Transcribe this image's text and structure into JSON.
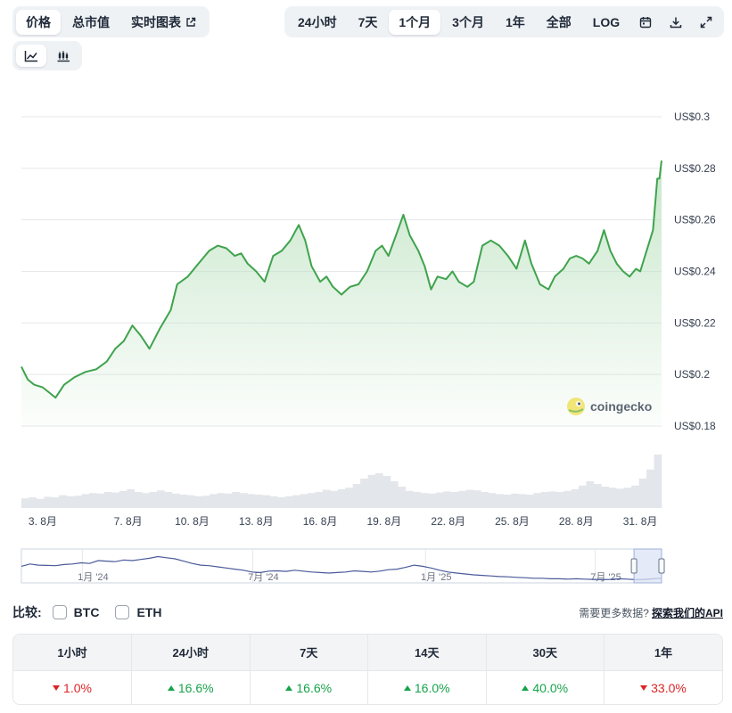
{
  "left_tabs": [
    {
      "label": "价格",
      "active": true
    },
    {
      "label": "总市值",
      "active": false
    },
    {
      "label": "实时图表",
      "active": false
    }
  ],
  "range_tabs": [
    {
      "label": "24小时",
      "active": false
    },
    {
      "label": "7天",
      "active": false
    },
    {
      "label": "1个月",
      "active": true
    },
    {
      "label": "3个月",
      "active": false
    },
    {
      "label": "1年",
      "active": false
    },
    {
      "label": "全部",
      "active": false
    },
    {
      "label": "LOG",
      "active": false
    }
  ],
  "toolbar_icons": [
    "calendar-icon",
    "download-icon",
    "fullscreen-icon"
  ],
  "view_toggle": [
    {
      "icon": "line-chart-icon",
      "active": true
    },
    {
      "icon": "candlestick-icon",
      "active": false
    }
  ],
  "watermark": "coingecko",
  "colors": {
    "line": "#3fa34d",
    "area": "#cfead1",
    "nav_line": "#4a5a9a",
    "nav_selection": "#dce3f6",
    "positive": "#16a34a",
    "negative": "#dc2626"
  },
  "chart_data": {
    "type": "line",
    "ylim": [
      0.18,
      0.3
    ],
    "ytick_values": [
      0.18,
      0.2,
      0.22,
      0.24,
      0.26,
      0.28,
      0.3
    ],
    "ytick_labels": [
      "US$0.18",
      "US$0.2",
      "US$0.22",
      "US$0.24",
      "US$0.26",
      "US$0.28",
      "US$0.3"
    ],
    "xlim": [
      2.0,
      32.0
    ],
    "xtick_values": [
      3,
      7,
      10,
      13,
      16,
      19,
      22,
      25,
      28,
      31
    ],
    "xtick_labels": [
      "3. 8月",
      "7. 8月",
      "10. 8月",
      "13. 8月",
      "16. 8月",
      "19. 8月",
      "22. 8月",
      "25. 8月",
      "28. 8月",
      "31. 8月"
    ],
    "points": [
      [
        2.0,
        0.203
      ],
      [
        2.3,
        0.198
      ],
      [
        2.6,
        0.196
      ],
      [
        3.0,
        0.195
      ],
      [
        3.3,
        0.193
      ],
      [
        3.6,
        0.191
      ],
      [
        4.0,
        0.196
      ],
      [
        4.5,
        0.199
      ],
      [
        5.0,
        0.201
      ],
      [
        5.5,
        0.202
      ],
      [
        6.0,
        0.205
      ],
      [
        6.4,
        0.21
      ],
      [
        6.8,
        0.213
      ],
      [
        7.2,
        0.219
      ],
      [
        7.6,
        0.215
      ],
      [
        8.0,
        0.21
      ],
      [
        8.5,
        0.218
      ],
      [
        9.0,
        0.225
      ],
      [
        9.3,
        0.235
      ],
      [
        9.8,
        0.238
      ],
      [
        10.3,
        0.243
      ],
      [
        10.8,
        0.248
      ],
      [
        11.2,
        0.25
      ],
      [
        11.6,
        0.249
      ],
      [
        12.0,
        0.246
      ],
      [
        12.3,
        0.247
      ],
      [
        12.6,
        0.243
      ],
      [
        13.0,
        0.24
      ],
      [
        13.4,
        0.236
      ],
      [
        13.8,
        0.246
      ],
      [
        14.2,
        0.248
      ],
      [
        14.6,
        0.252
      ],
      [
        15.0,
        0.258
      ],
      [
        15.3,
        0.252
      ],
      [
        15.6,
        0.242
      ],
      [
        16.0,
        0.236
      ],
      [
        16.3,
        0.238
      ],
      [
        16.6,
        0.234
      ],
      [
        17.0,
        0.231
      ],
      [
        17.4,
        0.234
      ],
      [
        17.8,
        0.235
      ],
      [
        18.2,
        0.24
      ],
      [
        18.6,
        0.248
      ],
      [
        18.9,
        0.25
      ],
      [
        19.2,
        0.246
      ],
      [
        19.6,
        0.255
      ],
      [
        19.9,
        0.262
      ],
      [
        20.2,
        0.254
      ],
      [
        20.6,
        0.248
      ],
      [
        20.9,
        0.242
      ],
      [
        21.2,
        0.233
      ],
      [
        21.5,
        0.238
      ],
      [
        21.9,
        0.237
      ],
      [
        22.2,
        0.24
      ],
      [
        22.5,
        0.236
      ],
      [
        22.9,
        0.234
      ],
      [
        23.2,
        0.236
      ],
      [
        23.6,
        0.25
      ],
      [
        24.0,
        0.252
      ],
      [
        24.4,
        0.25
      ],
      [
        24.8,
        0.246
      ],
      [
        25.2,
        0.241
      ],
      [
        25.6,
        0.252
      ],
      [
        25.9,
        0.243
      ],
      [
        26.3,
        0.235
      ],
      [
        26.7,
        0.233
      ],
      [
        27.0,
        0.238
      ],
      [
        27.4,
        0.241
      ],
      [
        27.7,
        0.245
      ],
      [
        28.0,
        0.246
      ],
      [
        28.3,
        0.245
      ],
      [
        28.6,
        0.243
      ],
      [
        29.0,
        0.248
      ],
      [
        29.3,
        0.256
      ],
      [
        29.6,
        0.248
      ],
      [
        29.9,
        0.243
      ],
      [
        30.2,
        0.24
      ],
      [
        30.5,
        0.238
      ],
      [
        30.8,
        0.241
      ],
      [
        31.0,
        0.24
      ],
      [
        31.3,
        0.248
      ],
      [
        31.6,
        0.256
      ],
      [
        31.8,
        0.276
      ],
      [
        31.9,
        0.276
      ],
      [
        32.0,
        0.283
      ]
    ],
    "volume": [
      0.18,
      0.2,
      0.17,
      0.21,
      0.2,
      0.24,
      0.22,
      0.23,
      0.26,
      0.28,
      0.27,
      0.3,
      0.29,
      0.32,
      0.35,
      0.3,
      0.28,
      0.3,
      0.33,
      0.3,
      0.27,
      0.25,
      0.24,
      0.22,
      0.23,
      0.26,
      0.28,
      0.27,
      0.3,
      0.28,
      0.26,
      0.25,
      0.24,
      0.22,
      0.2,
      0.22,
      0.24,
      0.26,
      0.28,
      0.3,
      0.34,
      0.32,
      0.35,
      0.38,
      0.45,
      0.55,
      0.62,
      0.65,
      0.6,
      0.5,
      0.4,
      0.32,
      0.3,
      0.28,
      0.27,
      0.29,
      0.31,
      0.3,
      0.32,
      0.34,
      0.33,
      0.3,
      0.28,
      0.26,
      0.25,
      0.27,
      0.26,
      0.25,
      0.28,
      0.3,
      0.31,
      0.3,
      0.32,
      0.35,
      0.42,
      0.5,
      0.45,
      0.4,
      0.38,
      0.36,
      0.38,
      0.42,
      0.55,
      0.72,
      1.0
    ],
    "navigator": {
      "xtick_labels": [
        "1月 '24",
        "7月 '24",
        "1月 '25",
        "7月 '25"
      ],
      "xtick_fractions": [
        0.112,
        0.378,
        0.648,
        0.913
      ],
      "series": [
        0.52,
        0.6,
        0.56,
        0.55,
        0.54,
        0.58,
        0.6,
        0.64,
        0.62,
        0.72,
        0.7,
        0.68,
        0.74,
        0.72,
        0.76,
        0.8,
        0.86,
        0.82,
        0.78,
        0.7,
        0.62,
        0.56,
        0.54,
        0.5,
        0.46,
        0.42,
        0.38,
        0.32,
        0.3,
        0.35,
        0.36,
        0.34,
        0.38,
        0.35,
        0.32,
        0.3,
        0.28,
        0.3,
        0.32,
        0.36,
        0.34,
        0.32,
        0.35,
        0.4,
        0.42,
        0.48,
        0.56,
        0.52,
        0.46,
        0.38,
        0.32,
        0.28,
        0.25,
        0.22,
        0.2,
        0.18,
        0.16,
        0.15,
        0.13,
        0.12,
        0.1,
        0.1,
        0.08,
        0.08,
        0.07,
        0.08,
        0.07,
        0.06,
        0.05,
        0.06,
        0.08,
        0.07,
        0.05,
        0.06,
        0.08,
        0.1
      ],
      "selection_fraction": [
        0.957,
        1.0
      ]
    }
  },
  "compare": {
    "label": "比较:",
    "options": [
      "BTC",
      "ETH"
    ],
    "more_text": "需要更多数据?",
    "api_link": "探索我们的API"
  },
  "performance": {
    "headers": [
      "1小时",
      "24小时",
      "7天",
      "14天",
      "30天",
      "1年"
    ],
    "values": [
      {
        "value": "1.0%",
        "dir": "down"
      },
      {
        "value": "16.6%",
        "dir": "up"
      },
      {
        "value": "16.6%",
        "dir": "up"
      },
      {
        "value": "16.0%",
        "dir": "up"
      },
      {
        "value": "40.0%",
        "dir": "up"
      },
      {
        "value": "33.0%",
        "dir": "down"
      }
    ]
  }
}
